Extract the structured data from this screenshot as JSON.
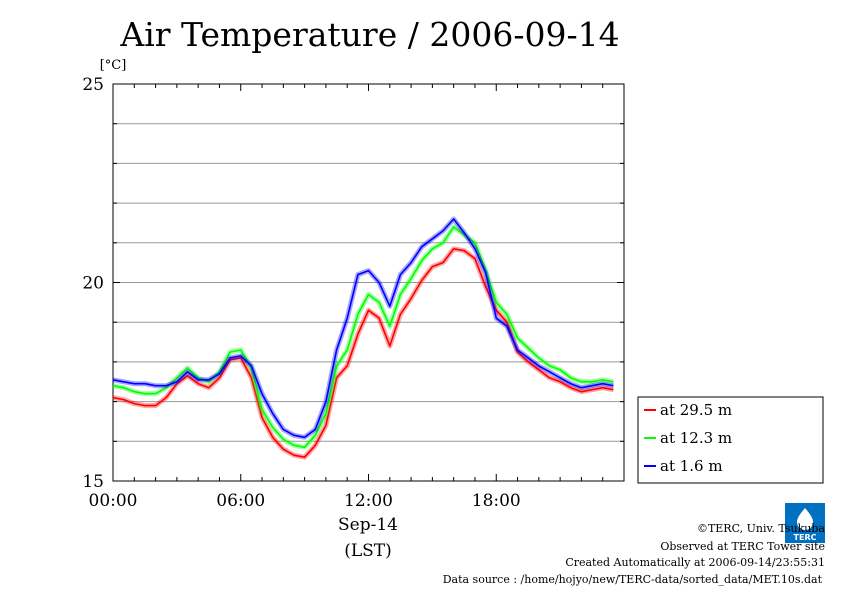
{
  "chart_data": {
    "type": "line",
    "title": "Air Temperature / 2006-09-14",
    "y_unit": "[°C]",
    "ylim": [
      15,
      25
    ],
    "y_ticks": [
      15,
      20,
      25
    ],
    "xlim": [
      0,
      24
    ],
    "x_ticks": [
      {
        "h": 0,
        "label": "00:00"
      },
      {
        "h": 6,
        "label": "06:00"
      },
      {
        "h": 12,
        "label": "12:00"
      },
      {
        "h": 18,
        "label": "18:00"
      }
    ],
    "x_date_label": "Sep-14",
    "x_unit_label": "(LST)",
    "grid": true,
    "legend_position": "right",
    "series": [
      {
        "name": "at 29.5 m",
        "color": "#ff0000",
        "x": [
          0,
          0.5,
          1,
          1.5,
          2,
          2.5,
          3,
          3.5,
          4,
          4.5,
          5,
          5.5,
          6,
          6.5,
          7,
          7.5,
          8,
          8.5,
          9,
          9.5,
          10,
          10.5,
          11,
          11.5,
          12,
          12.5,
          13,
          13.5,
          14,
          14.5,
          15,
          15.5,
          16,
          16.5,
          17,
          17.5,
          18,
          18.5,
          19,
          19.5,
          20,
          20.5,
          21,
          21.5,
          22,
          22.5,
          23,
          23.5
        ],
        "y": [
          17.1,
          17.05,
          16.95,
          16.9,
          16.9,
          17.1,
          17.45,
          17.65,
          17.45,
          17.35,
          17.6,
          18.05,
          18.1,
          17.6,
          16.6,
          16.1,
          15.8,
          15.65,
          15.6,
          15.9,
          16.4,
          17.6,
          17.9,
          18.7,
          19.3,
          19.1,
          18.4,
          19.2,
          19.6,
          20.05,
          20.4,
          20.5,
          20.85,
          20.8,
          20.6,
          19.9,
          19.3,
          19.0,
          18.25,
          18.0,
          17.8,
          17.6,
          17.5,
          17.35,
          17.25,
          17.3,
          17.35,
          17.3
        ]
      },
      {
        "name": "at 12.3 m",
        "color": "#00ff00",
        "x": [
          0,
          0.5,
          1,
          1.5,
          2,
          2.5,
          3,
          3.5,
          4,
          4.5,
          5,
          5.5,
          6,
          6.5,
          7,
          7.5,
          8,
          8.5,
          9,
          9.5,
          10,
          10.5,
          11,
          11.5,
          12,
          12.5,
          13,
          13.5,
          14,
          14.5,
          15,
          15.5,
          16,
          16.5,
          17,
          17.5,
          18,
          18.5,
          19,
          19.5,
          20,
          20.5,
          21,
          21.5,
          22,
          22.5,
          23,
          23.5
        ],
        "y": [
          17.4,
          17.35,
          17.25,
          17.2,
          17.2,
          17.35,
          17.6,
          17.85,
          17.6,
          17.5,
          17.75,
          18.25,
          18.3,
          17.85,
          16.8,
          16.35,
          16.05,
          15.9,
          15.85,
          16.15,
          16.7,
          17.9,
          18.3,
          19.2,
          19.7,
          19.5,
          18.9,
          19.7,
          20.1,
          20.55,
          20.85,
          21.0,
          21.4,
          21.2,
          21.0,
          20.3,
          19.5,
          19.2,
          18.6,
          18.35,
          18.1,
          17.9,
          17.8,
          17.6,
          17.5,
          17.5,
          17.55,
          17.5
        ]
      },
      {
        "name": "at 1.6 m",
        "color": "#0000ff",
        "x": [
          0,
          0.5,
          1,
          1.5,
          2,
          2.5,
          3,
          3.5,
          4,
          4.5,
          5,
          5.5,
          6,
          6.5,
          7,
          7.5,
          8,
          8.5,
          9,
          9.5,
          10,
          10.5,
          11,
          11.5,
          12,
          12.5,
          13,
          13.5,
          14,
          14.5,
          15,
          15.5,
          16,
          16.5,
          17,
          17.5,
          18,
          18.5,
          19,
          19.5,
          20,
          20.5,
          21,
          21.5,
          22,
          22.5,
          23,
          23.5
        ],
        "y": [
          17.55,
          17.5,
          17.45,
          17.45,
          17.4,
          17.4,
          17.5,
          17.75,
          17.55,
          17.55,
          17.7,
          18.1,
          18.15,
          17.9,
          17.2,
          16.7,
          16.3,
          16.15,
          16.1,
          16.3,
          17.0,
          18.3,
          19.1,
          20.2,
          20.3,
          20.0,
          19.4,
          20.2,
          20.5,
          20.9,
          21.1,
          21.3,
          21.6,
          21.25,
          20.85,
          20.25,
          19.1,
          18.9,
          18.3,
          18.1,
          17.9,
          17.75,
          17.6,
          17.45,
          17.35,
          17.4,
          17.45,
          17.4
        ]
      }
    ]
  },
  "footer": {
    "copyright": "©TERC, Univ. Tsukuba",
    "observed": "Observed at TERC Tower site",
    "created": "Created Automatically at 2006-09-14/23:55:31",
    "source": "Data source : /home/hojyo/new/TERC-data/sorted_data/MET.10s.dat"
  },
  "logo": {
    "text": "TERC",
    "color": "#0070c0"
  }
}
